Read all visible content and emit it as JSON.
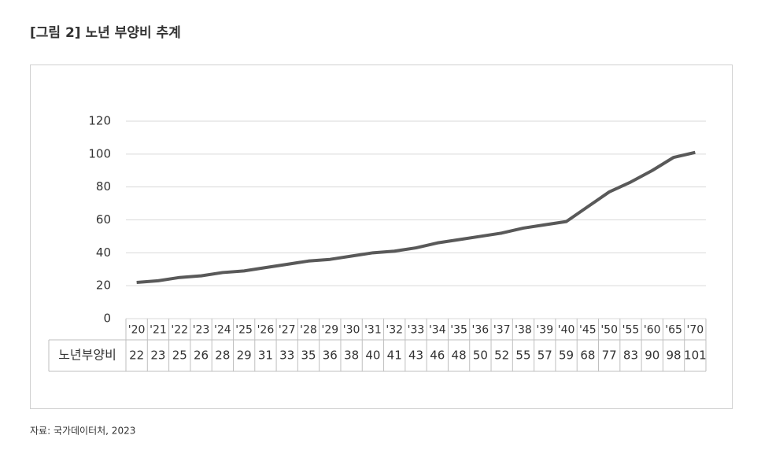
{
  "chart_data": {
    "type": "line",
    "title": "[그림 2] 노년 부양비 추계",
    "source": "자료: 국가데이터처, 2023",
    "categories": [
      "'20",
      "'21",
      "'22",
      "'23",
      "'24",
      "'25",
      "'26",
      "'27",
      "'28",
      "'29",
      "'30",
      "'31",
      "'32",
      "'33",
      "'34",
      "'35",
      "'36",
      "'37",
      "'38",
      "'39",
      "'40",
      "'45",
      "'50",
      "'55",
      "'60",
      "'65",
      "'70"
    ],
    "series": [
      {
        "name": "노년부양비",
        "color": "#595959",
        "values": [
          22,
          23,
          25,
          26,
          28,
          29,
          31,
          33,
          35,
          36,
          38,
          40,
          41,
          43,
          46,
          48,
          50,
          52,
          55,
          57,
          59,
          68,
          77,
          83,
          90,
          98,
          101
        ]
      }
    ],
    "ylim": [
      0,
      120
    ],
    "yticks": [
      0,
      20,
      40,
      60,
      80,
      100,
      120
    ],
    "grid": true
  }
}
